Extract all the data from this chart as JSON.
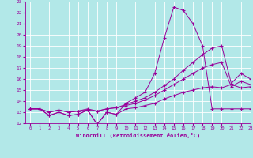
{
  "xlabel": "Windchill (Refroidissement éolien,°C)",
  "xlim": [
    -0.5,
    23
  ],
  "ylim": [
    12,
    23
  ],
  "xticks": [
    0,
    1,
    2,
    3,
    4,
    5,
    6,
    7,
    8,
    9,
    10,
    11,
    12,
    13,
    14,
    15,
    16,
    17,
    18,
    19,
    20,
    21,
    22,
    23
  ],
  "yticks": [
    12,
    13,
    14,
    15,
    16,
    17,
    18,
    19,
    20,
    21,
    22,
    23
  ],
  "bg_color": "#b2e8e8",
  "grid_color": "#ffffff",
  "line_color": "#990099",
  "line1_x": [
    0,
    1,
    2,
    3,
    4,
    5,
    6,
    7,
    8,
    9,
    10,
    11,
    12,
    13,
    14,
    15,
    16,
    17,
    18,
    19,
    20,
    21,
    22,
    23
  ],
  "line1_y": [
    13.3,
    13.3,
    12.7,
    13.0,
    12.7,
    12.8,
    13.2,
    11.9,
    13.0,
    12.8,
    13.3,
    13.4,
    13.6,
    13.8,
    14.2,
    14.5,
    14.8,
    15.0,
    15.2,
    15.3,
    15.2,
    15.5,
    15.2,
    15.3
  ],
  "line2_x": [
    0,
    1,
    2,
    3,
    4,
    5,
    6,
    7,
    8,
    9,
    10,
    11,
    12,
    13,
    14,
    15,
    16,
    17,
    18,
    19,
    20,
    21,
    22,
    23
  ],
  "line2_y": [
    13.3,
    13.3,
    12.7,
    13.0,
    12.7,
    12.8,
    13.2,
    11.9,
    13.0,
    12.8,
    13.8,
    14.3,
    14.8,
    16.5,
    19.7,
    22.5,
    22.2,
    21.0,
    19.0,
    13.3,
    13.3,
    13.3,
    13.3,
    13.3
  ],
  "line3_x": [
    0,
    1,
    2,
    3,
    4,
    5,
    6,
    7,
    8,
    9,
    10,
    11,
    12,
    13,
    14,
    15,
    16,
    17,
    18,
    19,
    20,
    21,
    22,
    23
  ],
  "line3_y": [
    13.3,
    13.3,
    13.0,
    13.2,
    13.0,
    13.1,
    13.3,
    13.1,
    13.3,
    13.4,
    13.7,
    14.0,
    14.3,
    14.8,
    15.4,
    16.0,
    16.8,
    17.5,
    18.2,
    18.8,
    19.0,
    15.6,
    16.5,
    16.0
  ],
  "line4_x": [
    0,
    1,
    2,
    3,
    4,
    5,
    6,
    7,
    8,
    9,
    10,
    11,
    12,
    13,
    14,
    15,
    16,
    17,
    18,
    19,
    20,
    21,
    22,
    23
  ],
  "line4_y": [
    13.3,
    13.3,
    13.0,
    13.2,
    13.0,
    13.1,
    13.2,
    13.1,
    13.3,
    13.4,
    13.6,
    13.8,
    14.1,
    14.5,
    15.0,
    15.5,
    16.0,
    16.5,
    17.0,
    17.3,
    17.5,
    15.3,
    15.8,
    15.5
  ]
}
